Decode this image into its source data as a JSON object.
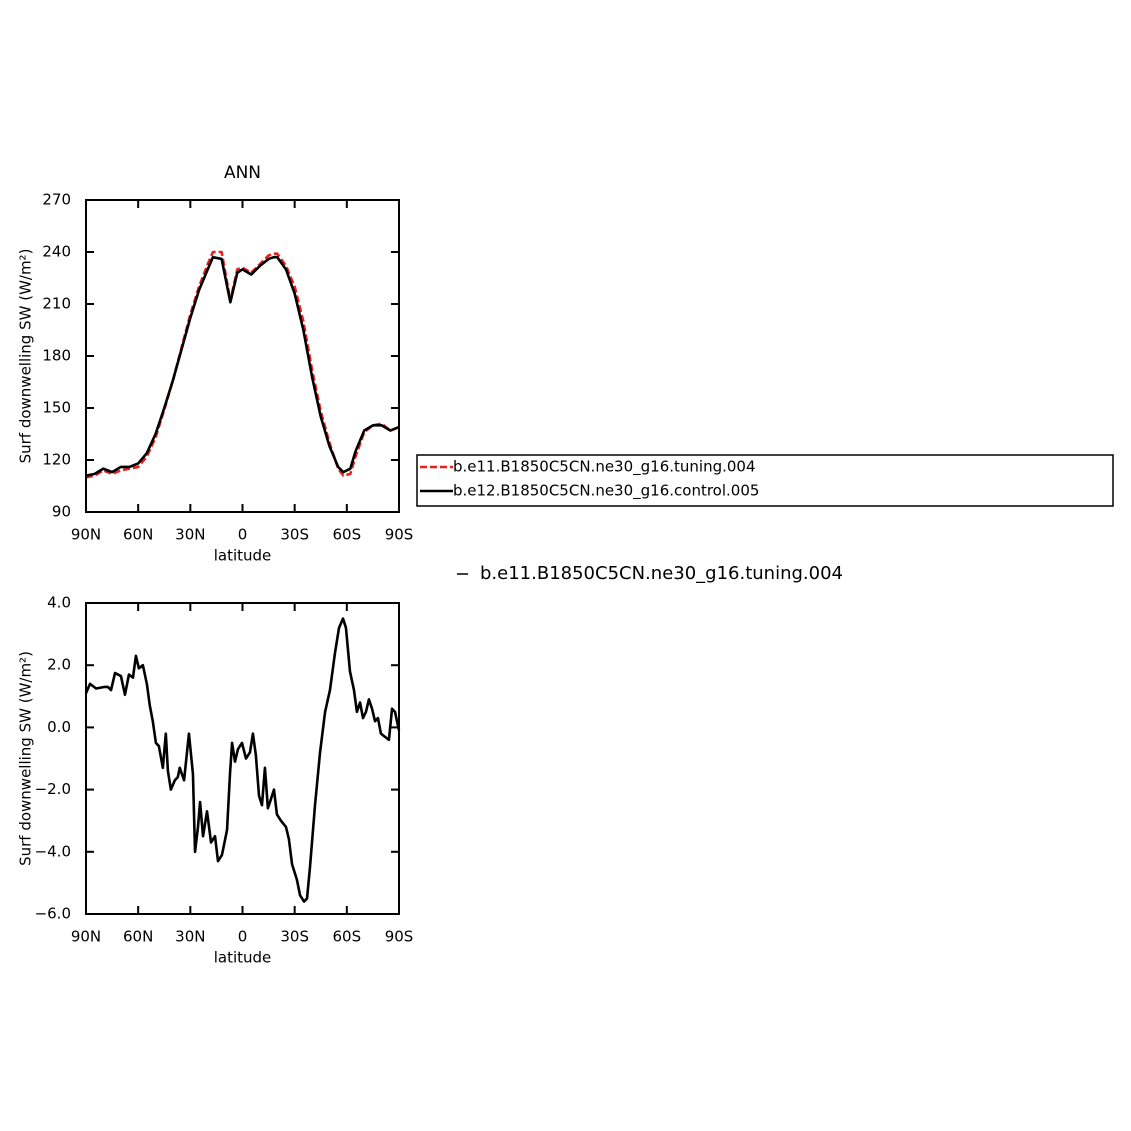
{
  "chart_data": [
    {
      "type": "line",
      "title": "ANN",
      "xlabel": "latitude",
      "ylabel": "Surf downwelling SW (W/m²)",
      "xlim": [
        90,
        -90
      ],
      "xticks": [
        {
          "value": 90,
          "label": "90N"
        },
        {
          "value": 60,
          "label": "60N"
        },
        {
          "value": 30,
          "label": "30N"
        },
        0,
        {
          "value": -30,
          "label": "30S"
        },
        {
          "value": -60,
          "label": "60S"
        },
        {
          "value": -90,
          "label": "90S"
        }
      ],
      "ylim": [
        90,
        270
      ],
      "yticks": [
        90,
        120,
        150,
        180,
        210,
        240,
        270
      ],
      "x": [
        90,
        85,
        80,
        75,
        70,
        65,
        60,
        55,
        50,
        45,
        40,
        35,
        30,
        25,
        20,
        17,
        12,
        7,
        3,
        0,
        -5,
        -10,
        -15,
        -18,
        -20,
        -25,
        -30,
        -35,
        -40,
        -45,
        -50,
        -55,
        -58,
        -62,
        -65,
        -70,
        -75,
        -80,
        -85,
        -90
      ],
      "series": [
        {
          "name": "b.e11.B1850C5CN.ne30_g16.tuning.004",
          "color": "#e8211e",
          "line_style": "dashed",
          "values": [
            110,
            111,
            114,
            112,
            114,
            115,
            116,
            122,
            133,
            149,
            166,
            185,
            204,
            220,
            233,
            240,
            240,
            212,
            230,
            231,
            228,
            233,
            238,
            239,
            239,
            232,
            220,
            200,
            172,
            148,
            130,
            115,
            111,
            112,
            122,
            136,
            140,
            141,
            137,
            139
          ]
        },
        {
          "name": "b.e12.B1850C5CN.ne30_g16.control.005",
          "color": "#000000",
          "line_style": "solid",
          "values": [
            111,
            112,
            115,
            113,
            116,
            116,
            118,
            124,
            135,
            150,
            166,
            184,
            202,
            218,
            230,
            237,
            236,
            211,
            228,
            230,
            227,
            232,
            236,
            237,
            237,
            230,
            216,
            195,
            168,
            145,
            128,
            116,
            113,
            115,
            125,
            137,
            140,
            140,
            137,
            139
          ]
        }
      ]
    },
    {
      "type": "line",
      "xlabel": "latitude",
      "ylabel": "Surf downwelling SW (W/m²)",
      "xlim": [
        90,
        -90
      ],
      "xticks": [
        {
          "value": 90,
          "label": "90N"
        },
        {
          "value": 60,
          "label": "60N"
        },
        {
          "value": 30,
          "label": "30N"
        },
        0,
        {
          "value": -30,
          "label": "30S"
        },
        {
          "value": -60,
          "label": "60S"
        },
        {
          "value": -90,
          "label": "90S"
        }
      ],
      "ylim": [
        -6,
        4
      ],
      "yticks": [
        {
          "value": -6,
          "label": "−6.0"
        },
        {
          "value": -4,
          "label": "−4.0"
        },
        {
          "value": -2,
          "label": "−2.0"
        },
        {
          "value": 0,
          "label": "0.0"
        },
        {
          "value": 2,
          "label": "2.0"
        },
        {
          "value": 4,
          "label": "4.0"
        }
      ],
      "x": [
        90,
        87.7,
        84.2,
        79.6,
        77.4,
        75.6,
        73.3,
        69.9,
        67.6,
        65.3,
        63,
        61.3,
        59.6,
        57.3,
        55,
        53.3,
        51.6,
        49.8,
        48.1,
        45.8,
        44.1,
        42.9,
        41.2,
        38.9,
        37.2,
        36.1,
        33.6,
        30.8,
        28.5,
        27.3,
        25.6,
        24.4,
        22.7,
        20.4,
        18.1,
        15.8,
        14.1,
        11.8,
        8.9,
        7.2,
        6,
        4.3,
        2.6,
        0.3,
        -2,
        -4.3,
        -6,
        -7.7,
        -9.5,
        -11.2,
        -12.9,
        -14.6,
        -16.4,
        -18.1,
        -19.8,
        -22.1,
        -25,
        -26.7,
        -28.5,
        -31.3,
        -33.1,
        -35.4,
        -37.1,
        -38.8,
        -41.7,
        -44.6,
        -47.5,
        -50.3,
        -53.2,
        -55.5,
        -57.8,
        -59.5,
        -61.8,
        -64.1,
        -65.8,
        -67.6,
        -69.3,
        -71,
        -72.7,
        -74.5,
        -76.2,
        -77.9,
        -79.6,
        -81.9,
        -84.2,
        -86,
        -87.7,
        -90
      ],
      "series": [
        {
          "name": "b.e11.B1850C5CN.ne30_g16.tuning.004",
          "color": "#000000",
          "line_style": "solid",
          "values": [
            1.1,
            1.4,
            1.25,
            1.3,
            1.3,
            1.2,
            1.75,
            1.65,
            1.05,
            1.7,
            1.6,
            2.3,
            1.9,
            2.0,
            1.4,
            0.7,
            0.2,
            -0.5,
            -0.6,
            -1.3,
            -0.2,
            -1.4,
            -2.0,
            -1.7,
            -1.6,
            -1.3,
            -1.7,
            -0.2,
            -1.5,
            -4.0,
            -3.2,
            -2.4,
            -3.5,
            -2.7,
            -3.7,
            -3.5,
            -4.3,
            -4.1,
            -3.3,
            -1.5,
            -0.5,
            -1.1,
            -0.7,
            -0.5,
            -1.0,
            -0.8,
            -0.2,
            -0.9,
            -2.2,
            -2.5,
            -1.3,
            -2.6,
            -2.3,
            -2.0,
            -2.8,
            -3.0,
            -3.2,
            -3.6,
            -4.4,
            -4.9,
            -5.4,
            -5.6,
            -5.5,
            -4.5,
            -2.5,
            -0.8,
            0.5,
            1.2,
            2.4,
            3.2,
            3.5,
            3.2,
            1.8,
            1.2,
            0.5,
            0.8,
            0.3,
            0.5,
            0.9,
            0.6,
            0.2,
            0.3,
            -0.2,
            -0.3,
            -0.4,
            0.6,
            0.5,
            -0.1
          ]
        }
      ]
    }
  ]
}
